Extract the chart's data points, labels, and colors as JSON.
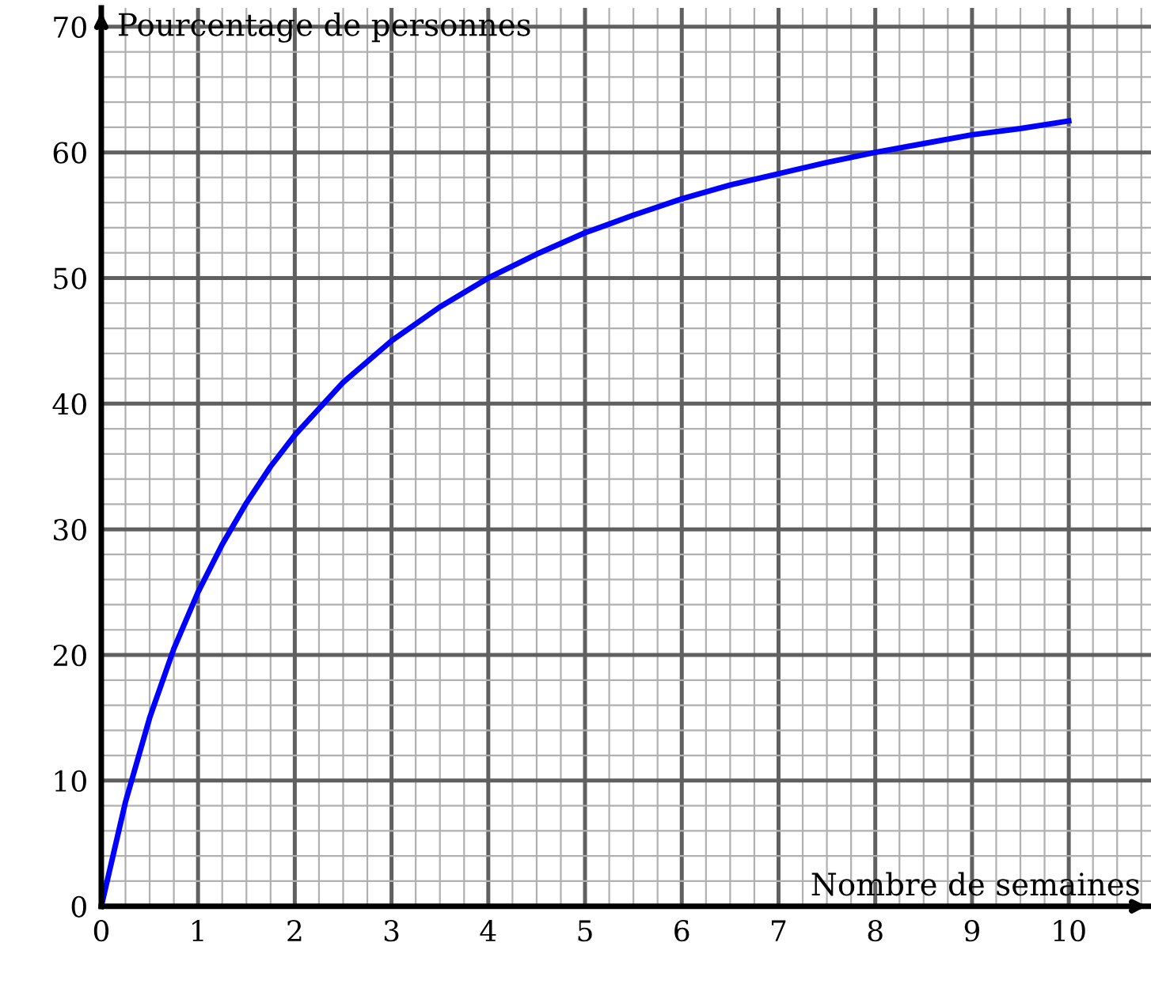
{
  "chart_data": {
    "type": "line",
    "xlabel": "Nombre de semaines",
    "ylabel": "Pourcentage de personnes",
    "x": [
      0,
      0.25,
      0.5,
      0.75,
      1,
      1.25,
      1.5,
      1.75,
      2,
      2.5,
      3,
      3.5,
      4,
      4.5,
      5,
      5.5,
      6,
      6.5,
      7,
      7.5,
      8,
      8.5,
      9,
      9.5,
      10
    ],
    "series": [
      {
        "color": "#0000ff",
        "values": [
          0,
          8.3,
          15,
          20.5,
          25,
          28.8,
          32.1,
          35,
          37.5,
          41.7,
          45,
          47.7,
          50,
          51.9,
          53.6,
          55,
          56.3,
          57.4,
          58.3,
          59.2,
          60,
          60.7,
          61.4,
          61.9,
          62.5
        ]
      }
    ],
    "xlim": [
      0,
      10.85
    ],
    "ylim": [
      0,
      71.5
    ],
    "xticks": [
      0,
      1,
      2,
      3,
      4,
      5,
      6,
      7,
      8,
      9,
      10
    ],
    "yticks": [
      0,
      10,
      20,
      30,
      40,
      50,
      60,
      70
    ],
    "grid": true,
    "marker": "none",
    "line_style": "solid"
  }
}
